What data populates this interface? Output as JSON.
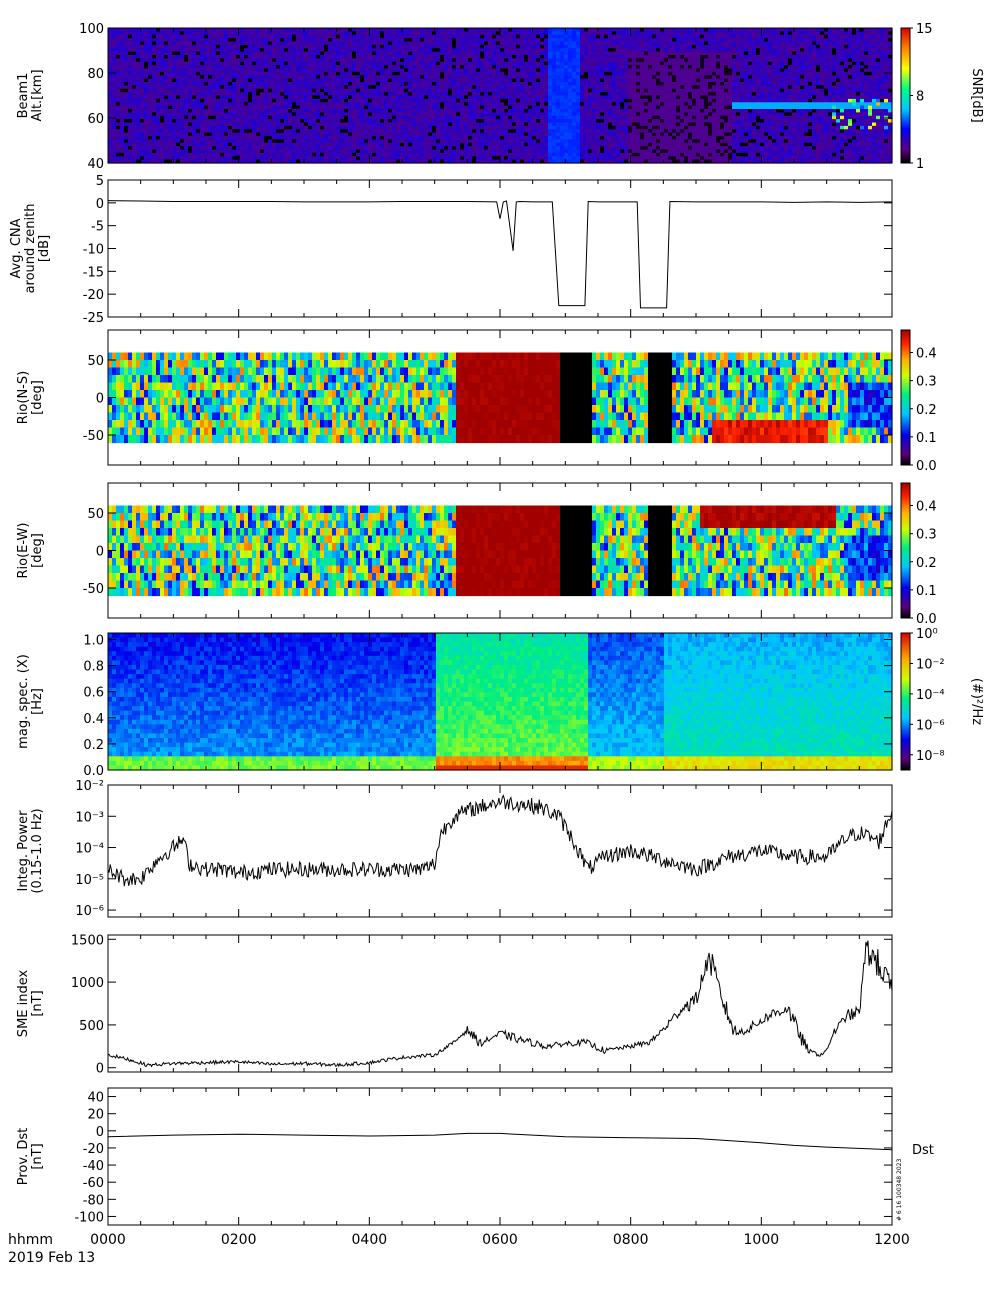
{
  "footer": {
    "format_label": "hhmm",
    "date_label": "2019 Feb 13"
  },
  "x_axis": {
    "ticks": [
      "0000",
      "0200",
      "0400",
      "0600",
      "0800",
      "1000",
      "1200"
    ]
  },
  "colors": {
    "black": "#000000",
    "background": "#ffffff"
  },
  "chart_data": [
    {
      "type": "heatmap",
      "ylabel": [
        "Beam1",
        "Alt.[km]"
      ],
      "yticks": [
        "100",
        "80",
        "60",
        "40"
      ],
      "ylim": [
        40,
        100
      ],
      "colorbar": {
        "label": "SNR[dB]",
        "ticks": [
          "15",
          "8",
          "1"
        ],
        "range": [
          1,
          15
        ]
      }
    },
    {
      "type": "line",
      "ylabel": [
        "Avg. CNA",
        "around zenith",
        "[dB]"
      ],
      "yticks": [
        "5",
        "0",
        "-5",
        "-10",
        "-15",
        "-20",
        "-25"
      ],
      "ylim": [
        -25,
        5
      ],
      "x": [
        0,
        0.5,
        1,
        1.5,
        2,
        2.5,
        3,
        3.5,
        4,
        4.5,
        5,
        5.5,
        5.95,
        6.0,
        6.05,
        6.1,
        6.2,
        6.25,
        6.3,
        6.5,
        6.8,
        6.9,
        7.3,
        7.35,
        7.5,
        8.0,
        8.1,
        8.15,
        8.5,
        8.55,
        8.6,
        9,
        9.5,
        10,
        10.5,
        11,
        11.5,
        12
      ],
      "values": [
        0.5,
        0.4,
        0.3,
        0.3,
        0.3,
        0.3,
        0.2,
        0.2,
        0.2,
        0.3,
        0.3,
        0.3,
        0.2,
        -3.5,
        0.2,
        0.4,
        -10.5,
        0.2,
        0.3,
        0.2,
        0.2,
        -22.5,
        -22.5,
        0.3,
        0.2,
        0.2,
        0.2,
        -23,
        -23,
        -23,
        0.3,
        0.2,
        0.2,
        0.2,
        0.1,
        0.2,
        0.1,
        0.2
      ]
    },
    {
      "type": "heatmap",
      "ylabel": [
        "Rio(N-S)",
        "[deg]"
      ],
      "yticks": [
        "50",
        "0",
        "-50"
      ],
      "ylim": [
        -90,
        90
      ],
      "colorbar": {
        "ticks": [
          "0.4",
          "0.3",
          "0.2",
          "0.1",
          "0.0"
        ],
        "range": [
          0,
          0.48
        ]
      }
    },
    {
      "type": "heatmap",
      "ylabel": [
        "Rio(E-W)",
        "[deg]"
      ],
      "yticks": [
        "50",
        "0",
        "-50"
      ],
      "ylim": [
        -90,
        90
      ],
      "colorbar": {
        "ticks": [
          "0.4",
          "0.3",
          "0.2",
          "0.1",
          "0.0"
        ],
        "range": [
          0,
          0.48
        ]
      }
    },
    {
      "type": "heatmap",
      "ylabel": [
        "mag. spec. (X)",
        "[Hz]"
      ],
      "yticks": [
        "1.0",
        "0.8",
        "0.6",
        "0.4",
        "0.2",
        "0.0"
      ],
      "ylim": [
        0,
        1.05
      ],
      "colorbar": {
        "label": "(#)²/Hz",
        "ticks": [
          "10⁰",
          "10⁻²",
          "10⁻⁴",
          "10⁻⁶",
          "10⁻⁸"
        ],
        "range": [
          -9,
          0
        ]
      }
    },
    {
      "type": "line",
      "log_y": true,
      "ylabel": [
        "Integ. Power",
        "(0.15-1.0 Hz)"
      ],
      "yticks": [
        "10⁻²",
        "10⁻³",
        "10⁻⁴",
        "10⁻⁵",
        "10⁻⁶"
      ],
      "ylim": [
        6e-07,
        0.01
      ],
      "x": [
        0,
        0.25,
        0.5,
        0.75,
        1.0,
        1.15,
        1.25,
        1.5,
        1.75,
        2.0,
        2.5,
        3.0,
        3.5,
        4.0,
        4.5,
        4.8,
        5.0,
        5.1,
        5.3,
        5.5,
        5.7,
        6.0,
        6.3,
        6.6,
        6.9,
        7.1,
        7.35,
        7.6,
        8.0,
        8.5,
        9.0,
        9.5,
        10.0,
        10.5,
        11.0,
        11.3,
        11.5,
        11.7,
        11.8,
        12.0
      ],
      "values": [
        2e-05,
        1e-05,
        1e-05,
        4e-05,
        0.0001,
        0.00018,
        3e-05,
        2e-05,
        2e-05,
        1.5e-05,
        2e-05,
        2e-05,
        2e-05,
        2e-05,
        2e-05,
        2e-05,
        3e-05,
        0.0003,
        0.001,
        0.0015,
        0.002,
        0.003,
        0.0025,
        0.002,
        0.001,
        0.0002,
        2e-05,
        5e-05,
        8e-05,
        4e-05,
        2e-05,
        5e-05,
        8e-05,
        5e-05,
        5e-05,
        0.0002,
        0.0003,
        0.0002,
        0.00015,
        0.0015
      ]
    },
    {
      "type": "line",
      "ylabel": [
        "SME index",
        "[nT]"
      ],
      "yticks": [
        "1500",
        "1000",
        "500",
        "0"
      ],
      "ylim": [
        -50,
        1550
      ],
      "x": [
        0,
        0.3,
        0.6,
        1.0,
        1.5,
        2.0,
        2.5,
        3.0,
        3.5,
        4.0,
        4.5,
        5.0,
        5.3,
        5.5,
        5.7,
        6.0,
        6.3,
        6.7,
        7.0,
        7.3,
        7.6,
        8.0,
        8.3,
        8.5,
        8.8,
        9.0,
        9.2,
        9.35,
        9.6,
        9.8,
        10.1,
        10.4,
        10.7,
        10.9,
        11.0,
        11.1,
        11.3,
        11.5,
        11.6,
        11.8,
        12.0
      ],
      "values": [
        150,
        100,
        30,
        50,
        60,
        70,
        40,
        50,
        30,
        60,
        120,
        150,
        300,
        450,
        280,
        400,
        330,
        250,
        280,
        300,
        200,
        250,
        300,
        450,
        700,
        800,
        1300,
        900,
        400,
        450,
        600,
        700,
        200,
        150,
        200,
        400,
        600,
        650,
        1400,
        1200,
        900
      ]
    },
    {
      "type": "line",
      "ylabel": [
        "Prov. Dst",
        "[nT]"
      ],
      "yticks": [
        "40",
        "20",
        "0",
        "-20",
        "-40",
        "-60",
        "-80",
        "-100"
      ],
      "ylim": [
        -110,
        50
      ],
      "series_label": "Dst",
      "stamp": "# 6 16 100348 2023",
      "x": [
        0,
        1,
        2,
        3,
        4,
        5,
        5.5,
        6,
        6.5,
        7,
        8,
        9,
        10,
        10.5,
        11,
        12
      ],
      "values": [
        -7,
        -5,
        -4,
        -5,
        -6,
        -5,
        -3,
        -3,
        -5,
        -7,
        -8,
        -9,
        -14,
        -17,
        -19,
        -22
      ]
    }
  ]
}
